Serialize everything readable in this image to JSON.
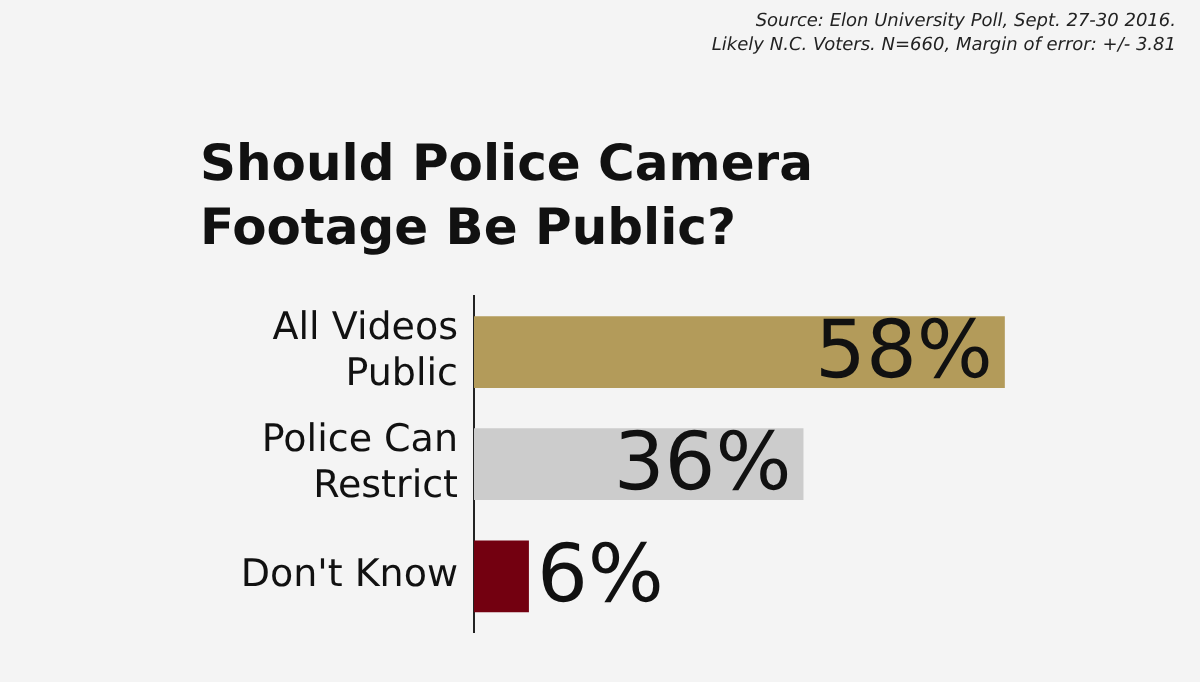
{
  "chart_data": {
    "type": "bar",
    "orientation": "horizontal",
    "title": "Should Police Camera Footage Be Public?",
    "annotations": [
      "Source: Elon University Poll, Sept. 27-30 2016.",
      "Likely N.C. Voters. N=660, Margin of error: +/- 3.81"
    ],
    "categories": [
      "All Videos Public",
      "Police Can Restrict",
      "Don't Know"
    ],
    "values": [
      58,
      36,
      6
    ],
    "colors": [
      "#b39b5a",
      "#cccccc",
      "#730010"
    ],
    "value_labels": [
      "58%",
      "36%",
      "6%"
    ],
    "legend": false,
    "grid": false
  }
}
